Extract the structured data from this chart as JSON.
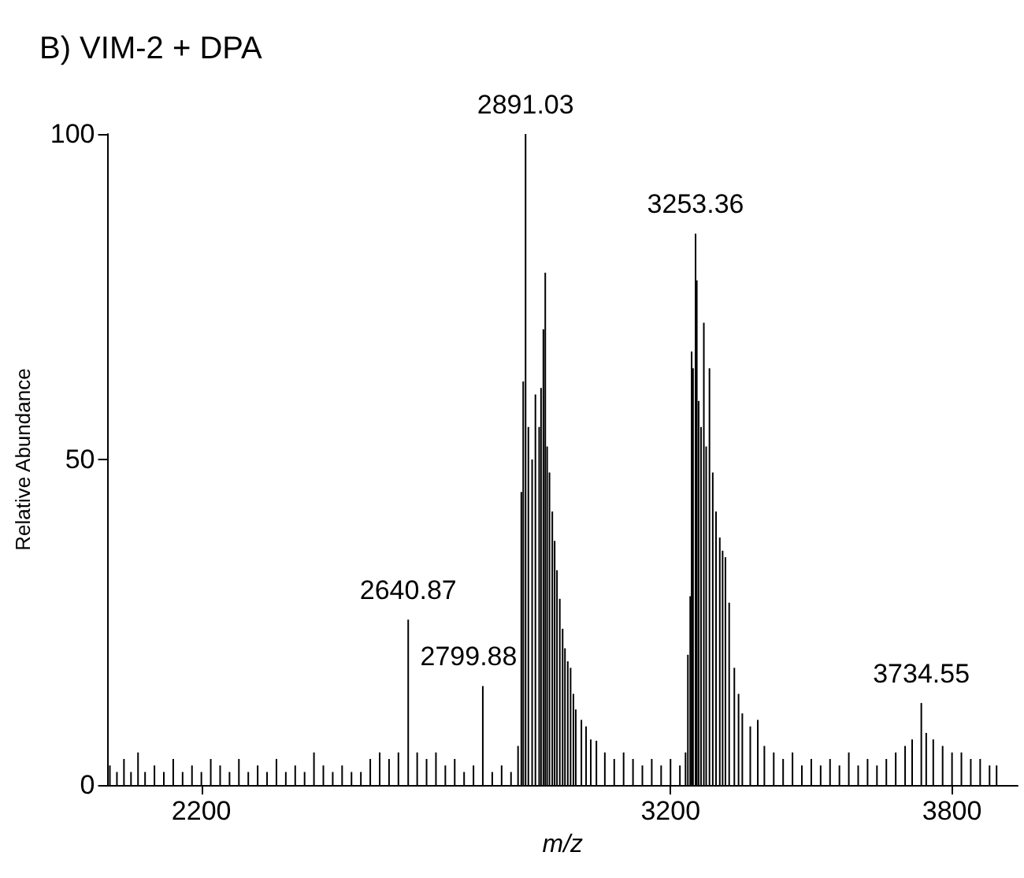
{
  "chart_data": {
    "type": "bar",
    "title": "B) VIM-2 + DPA",
    "xlabel": "m/z",
    "ylabel": "Relative Abundance",
    "x": [
      2005,
      2020,
      2035,
      2050,
      2065,
      2080,
      2100,
      2120,
      2140,
      2160,
      2180,
      2200,
      2220,
      2240,
      2260,
      2280,
      2300,
      2320,
      2340,
      2360,
      2380,
      2400,
      2420,
      2440,
      2460,
      2480,
      2500,
      2520,
      2540,
      2560,
      2580,
      2600,
      2620,
      2640.87,
      2660,
      2680,
      2700,
      2720,
      2740,
      2760,
      2780,
      2799.88,
      2820,
      2840,
      2860,
      2875,
      2882,
      2886,
      2891.03,
      2897,
      2905,
      2912,
      2920,
      2924,
      2929,
      2933,
      2937,
      2942,
      2948,
      2953,
      2958,
      2964,
      2970,
      2975,
      2981,
      2987,
      2993,
      2998,
      3010,
      3020,
      3030,
      3042,
      3060,
      3080,
      3100,
      3120,
      3140,
      3160,
      3180,
      3200,
      3220,
      3232,
      3237,
      3242,
      3245,
      3248,
      3253.36,
      3256,
      3260,
      3265,
      3271,
      3276,
      3283,
      3290,
      3297,
      3305,
      3311,
      3317,
      3325,
      3336,
      3345,
      3353,
      3370,
      3386,
      3400,
      3420,
      3440,
      3460,
      3480,
      3500,
      3520,
      3540,
      3560,
      3580,
      3600,
      3620,
      3640,
      3660,
      3680,
      3700,
      3715,
      3734.55,
      3745,
      3760,
      3780,
      3800,
      3820,
      3840,
      3860,
      3880,
      3895
    ],
    "values": [
      3,
      2,
      4,
      2,
      5,
      2,
      3,
      2,
      4,
      2,
      3,
      2,
      4,
      3,
      2,
      4,
      2,
      3,
      2,
      4,
      2,
      3,
      2,
      5,
      3,
      2,
      3,
      2,
      2,
      4,
      5,
      4,
      5,
      25.4,
      5,
      4,
      5,
      3,
      4,
      2,
      3,
      15.2,
      2,
      3,
      2,
      6,
      45,
      62,
      100,
      55,
      50,
      60,
      55,
      61,
      70,
      78.7,
      52,
      48,
      42,
      37.5,
      33,
      28.6,
      24,
      21,
      19,
      18,
      14,
      11.6,
      10,
      9,
      7,
      6.8,
      5,
      4,
      5,
      4,
      3,
      4,
      3,
      4,
      3,
      5,
      20,
      29,
      66.6,
      64,
      84.7,
      77.5,
      59,
      55,
      71,
      52,
      64,
      48,
      42,
      38,
      36,
      35,
      28,
      18,
      14,
      11,
      9,
      10,
      6,
      5,
      4,
      5,
      3,
      4,
      3,
      4,
      3,
      5,
      3,
      4,
      3,
      4,
      5,
      6,
      7,
      12.6,
      8,
      7,
      6,
      5,
      5,
      4,
      4,
      3,
      3
    ],
    "color": "#000000",
    "xlim": [
      2000,
      3940
    ],
    "xticks": [
      2200,
      3200,
      3800
    ],
    "ylim": [
      0,
      100
    ],
    "yticks": [
      0,
      50,
      100
    ],
    "annotations": [
      {
        "text": "2891.03",
        "x": 2891.03,
        "y": 100
      },
      {
        "text": "3253.36",
        "x": 3253.36,
        "y": 84.7
      },
      {
        "text": "2640.87",
        "x": 2640.87,
        "y": 25.4
      },
      {
        "text": "2799.88",
        "x": 2799.88,
        "y": 15.2
      },
      {
        "text": "3734.55",
        "x": 3734.55,
        "y": 12.6
      }
    ]
  }
}
